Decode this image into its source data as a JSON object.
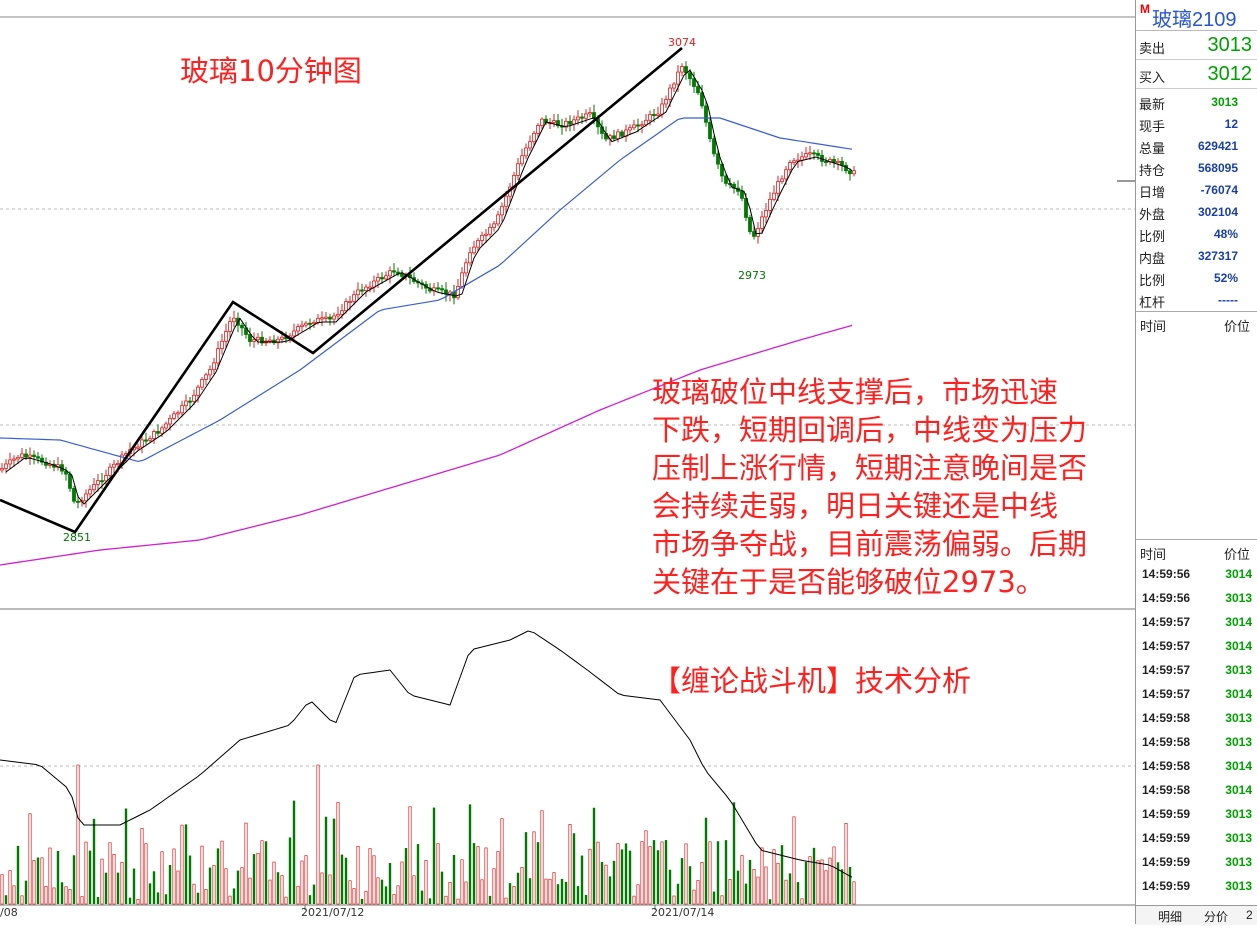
{
  "chart": {
    "title": "玻璃10分钟图",
    "high_label": "3074",
    "low_label": "2973",
    "start_label": "2851",
    "note_lines": [
      "玻璃破位中线支撑后，市场迅速",
      "下跌，短期回调后，中线变为压力",
      "压制上涨行情，短期注意晚间是否",
      "会持续走弱，明日关键还是中线",
      "市场争夺战，目前震荡偏弱。后期",
      "关键在于是否能够破位2973。"
    ],
    "tag": "【缠论战斗机】技术分析",
    "x_labels": [
      "/08",
      "2021/07/12",
      "2021/07/14"
    ],
    "colors": {
      "up": "#e02020",
      "down": "#007a00",
      "ma_short": "#000000",
      "ma_mid": "#3a5fd0",
      "ma_long": "#d020d0",
      "trend": "#000000"
    }
  },
  "panel": {
    "marker": "M",
    "symbol": "玻璃2109",
    "sell": {
      "label": "卖出",
      "value": "3013"
    },
    "buy": {
      "label": "买入",
      "value": "3012"
    },
    "stats": [
      {
        "label": "最新",
        "value": "3013",
        "color": "#00a000"
      },
      {
        "label": "现手",
        "value": "12",
        "color": "#1a3fa8"
      },
      {
        "label": "总量",
        "value": "629421",
        "color": "#1a3fa8"
      },
      {
        "label": "持仓",
        "value": "568095",
        "color": "#1a3fa8"
      },
      {
        "label": "日增",
        "value": "-76074",
        "color": "#1a3fa8"
      },
      {
        "label": "外盘",
        "value": "302104",
        "color": "#1a3fa8"
      },
      {
        "label": "比例",
        "value": "48%",
        "color": "#1a3fa8"
      },
      {
        "label": "内盘",
        "value": "327317",
        "color": "#1a3fa8"
      },
      {
        "label": "比例",
        "value": "52%",
        "color": "#1a3fa8"
      },
      {
        "label": "杠杆",
        "value": "-----",
        "color": "#1a3fa8"
      }
    ],
    "header_time": "时间",
    "header_price": "价位",
    "ticks": [
      {
        "time": "14:59:56",
        "price": "3014"
      },
      {
        "time": "14:59:56",
        "price": "3013"
      },
      {
        "time": "14:59:57",
        "price": "3014"
      },
      {
        "time": "14:59:57",
        "price": "3014"
      },
      {
        "time": "14:59:57",
        "price": "3013"
      },
      {
        "time": "14:59:57",
        "price": "3014"
      },
      {
        "time": "14:59:58",
        "price": "3013"
      },
      {
        "time": "14:59:58",
        "price": "3013"
      },
      {
        "time": "14:59:58",
        "price": "3014"
      },
      {
        "time": "14:59:58",
        "price": "3014"
      },
      {
        "time": "14:59:59",
        "price": "3013"
      },
      {
        "time": "14:59:59",
        "price": "3013"
      },
      {
        "time": "14:59:59",
        "price": "3013"
      },
      {
        "time": "14:59:59",
        "price": "3013"
      },
      {
        "time": "14:59:59",
        "price": "3013"
      }
    ],
    "tabs": [
      "明细",
      "分价",
      "2"
    ]
  }
}
